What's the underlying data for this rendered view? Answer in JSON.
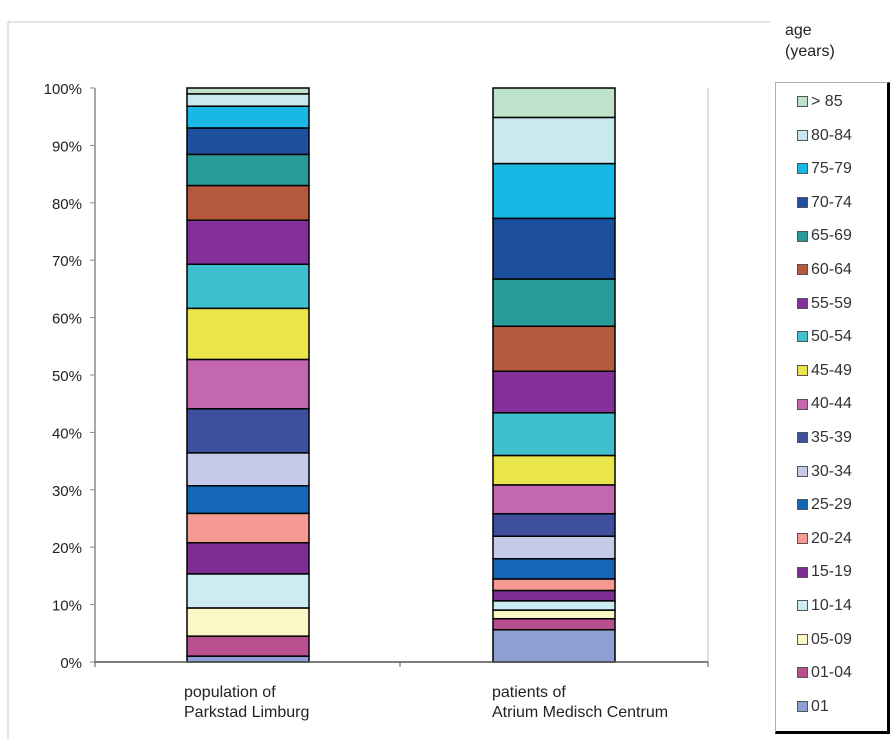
{
  "chart_data": {
    "type": "bar",
    "stacked": true,
    "percent": true,
    "legend_title_line1": "age",
    "legend_title_line2": "(years)",
    "ytick_labels": [
      "0%",
      "10%",
      "20%",
      "30%",
      "40%",
      "50%",
      "60%",
      "70%",
      "80%",
      "90%",
      "100%"
    ],
    "ylim": [
      0,
      100
    ],
    "grid": false,
    "legend_position": "right",
    "categories": [
      {
        "line1": "population of",
        "line2": "Parkstad Limburg"
      },
      {
        "line1": "patients of",
        "line2": "Atrium Medisch Centrum"
      }
    ],
    "series": [
      {
        "name": "01",
        "color": "#8e9fd3",
        "values": [
          1.0,
          5.6
        ]
      },
      {
        "name": "01-04",
        "color": "#b84f8e",
        "values": [
          3.4,
          1.9
        ]
      },
      {
        "name": "05-09",
        "color": "#fbf8c6",
        "values": [
          4.8,
          1.5
        ]
      },
      {
        "name": "10-14",
        "color": "#cdebf2",
        "values": [
          5.8,
          1.6
        ]
      },
      {
        "name": "15-19",
        "color": "#7d2d93",
        "values": [
          5.3,
          1.8
        ]
      },
      {
        "name": "20-24",
        "color": "#f59a92",
        "values": [
          5.0,
          2.0
        ]
      },
      {
        "name": "25-29",
        "color": "#1466b6",
        "values": [
          4.7,
          3.5
        ]
      },
      {
        "name": "30-34",
        "color": "#c4cae8",
        "values": [
          5.6,
          3.9
        ]
      },
      {
        "name": "35-39",
        "color": "#3d4f9e",
        "values": [
          7.5,
          3.9
        ]
      },
      {
        "name": "40-44",
        "color": "#c267b0",
        "values": [
          8.4,
          5.0
        ]
      },
      {
        "name": "45-49",
        "color": "#eae54a",
        "values": [
          8.7,
          5.1
        ]
      },
      {
        "name": "50-54",
        "color": "#40c0cf",
        "values": [
          7.5,
          7.4
        ]
      },
      {
        "name": "55-59",
        "color": "#83309a",
        "values": [
          7.5,
          7.2
        ]
      },
      {
        "name": "60-64",
        "color": "#b65a3f",
        "values": [
          5.9,
          7.8
        ]
      },
      {
        "name": "65-69",
        "color": "#2a9b9b",
        "values": [
          5.3,
          8.2
        ]
      },
      {
        "name": "70-74",
        "color": "#1d4f9e",
        "values": [
          4.5,
          10.5
        ]
      },
      {
        "name": "75-79",
        "color": "#19b8e4",
        "values": [
          3.7,
          9.5
        ]
      },
      {
        "name": "80-84",
        "color": "#c8e9f0",
        "values": [
          2.1,
          8.0
        ]
      },
      {
        "name": ">85",
        "color": "#bfe3ca",
        "values": [
          1.0,
          5.1
        ]
      }
    ],
    "legend_labels": [
      ">  85",
      "80-84",
      "75-79",
      "70-74",
      "65-69",
      "60-64",
      "55-59",
      "50-54",
      "45-49",
      "40-44",
      "35-39",
      "30-34",
      "25-29",
      "20-24",
      "15-19",
      "10-14",
      "05-09",
      "01-04",
      "01"
    ]
  }
}
